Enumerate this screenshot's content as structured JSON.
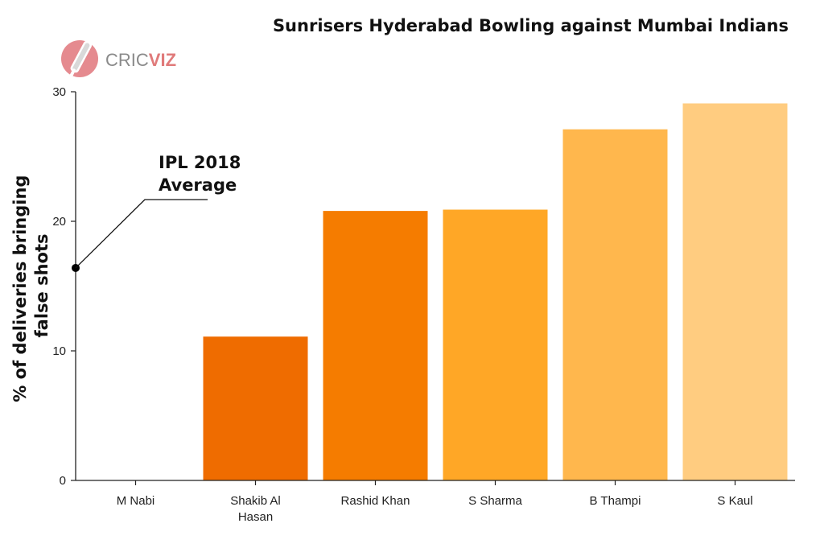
{
  "logo": {
    "text_a": "CRIC",
    "text_b": "VIZ",
    "color_a": "#8a8a8a",
    "color_b": "#e07a7a",
    "badge_color": "#e58a8f"
  },
  "chart_data": {
    "type": "bar",
    "title": "Sunrisers Hyderabad Bowling against Mumbai Indians",
    "xlabel": "",
    "ylabel_lines": [
      "% of deliveries bringing",
      "false shots"
    ],
    "ylim": [
      0,
      30
    ],
    "yticks": [
      0,
      10,
      20,
      30
    ],
    "grid": false,
    "legend": "none",
    "categories": [
      {
        "label": [
          "M Nabi"
        ],
        "value": 0,
        "color": "#e8650a"
      },
      {
        "label": [
          "Shakib Al",
          "Hasan"
        ],
        "value": 11.1,
        "color": "#ef6c00"
      },
      {
        "label": [
          "Rashid Khan"
        ],
        "value": 20.8,
        "color": "#f57c00"
      },
      {
        "label": [
          "S Sharma"
        ],
        "value": 20.9,
        "color": "#ffa726"
      },
      {
        "label": [
          "B Thampi"
        ],
        "value": 27.1,
        "color": "#ffb74d"
      },
      {
        "label": [
          "S Kaul"
        ],
        "value": 29.1,
        "color": "#ffcc80"
      }
    ],
    "annotation": {
      "lines": [
        "IPL 2018",
        "Average"
      ],
      "value": 16.4
    }
  }
}
